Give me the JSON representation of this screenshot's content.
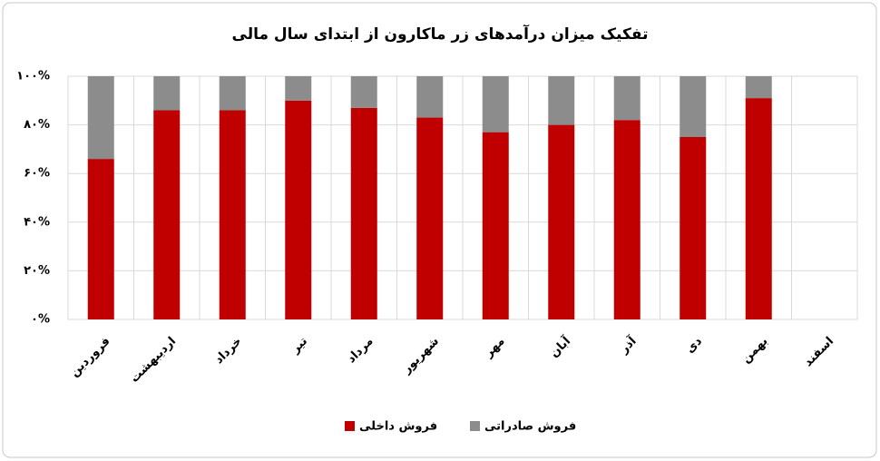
{
  "chart_data": {
    "type": "stacked-bar",
    "title": "تفکیک میزان درآمدهای زر ماکارون از ابتدای سال مالی",
    "categories": [
      "فروردین",
      "اردیبهشت",
      "خرداد",
      "تیر",
      "مرداد",
      "شهریور",
      "مهر",
      "آبان",
      "آذر",
      "دی",
      "بهمن",
      "اسفند"
    ],
    "series": [
      {
        "name": "فروش داخلی",
        "color": "#c00000",
        "values": [
          66,
          86,
          86,
          90,
          87,
          83,
          77,
          80,
          82,
          75,
          91,
          null
        ]
      },
      {
        "name": "فروش صادراتی",
        "color": "#8c8c8c",
        "values": [
          34,
          14,
          14,
          10,
          13,
          17,
          23,
          20,
          18,
          25,
          9,
          null
        ]
      }
    ],
    "ylim": [
      0,
      100
    ],
    "yticks": [
      {
        "value": 0,
        "label": "۰%"
      },
      {
        "value": 20,
        "label": "۲۰%"
      },
      {
        "value": 40,
        "label": "۴۰%"
      },
      {
        "value": 60,
        "label": "۶۰%"
      },
      {
        "value": 80,
        "label": "۸۰%"
      },
      {
        "value": 100,
        "label": "۱۰۰%"
      }
    ],
    "grid": true
  }
}
